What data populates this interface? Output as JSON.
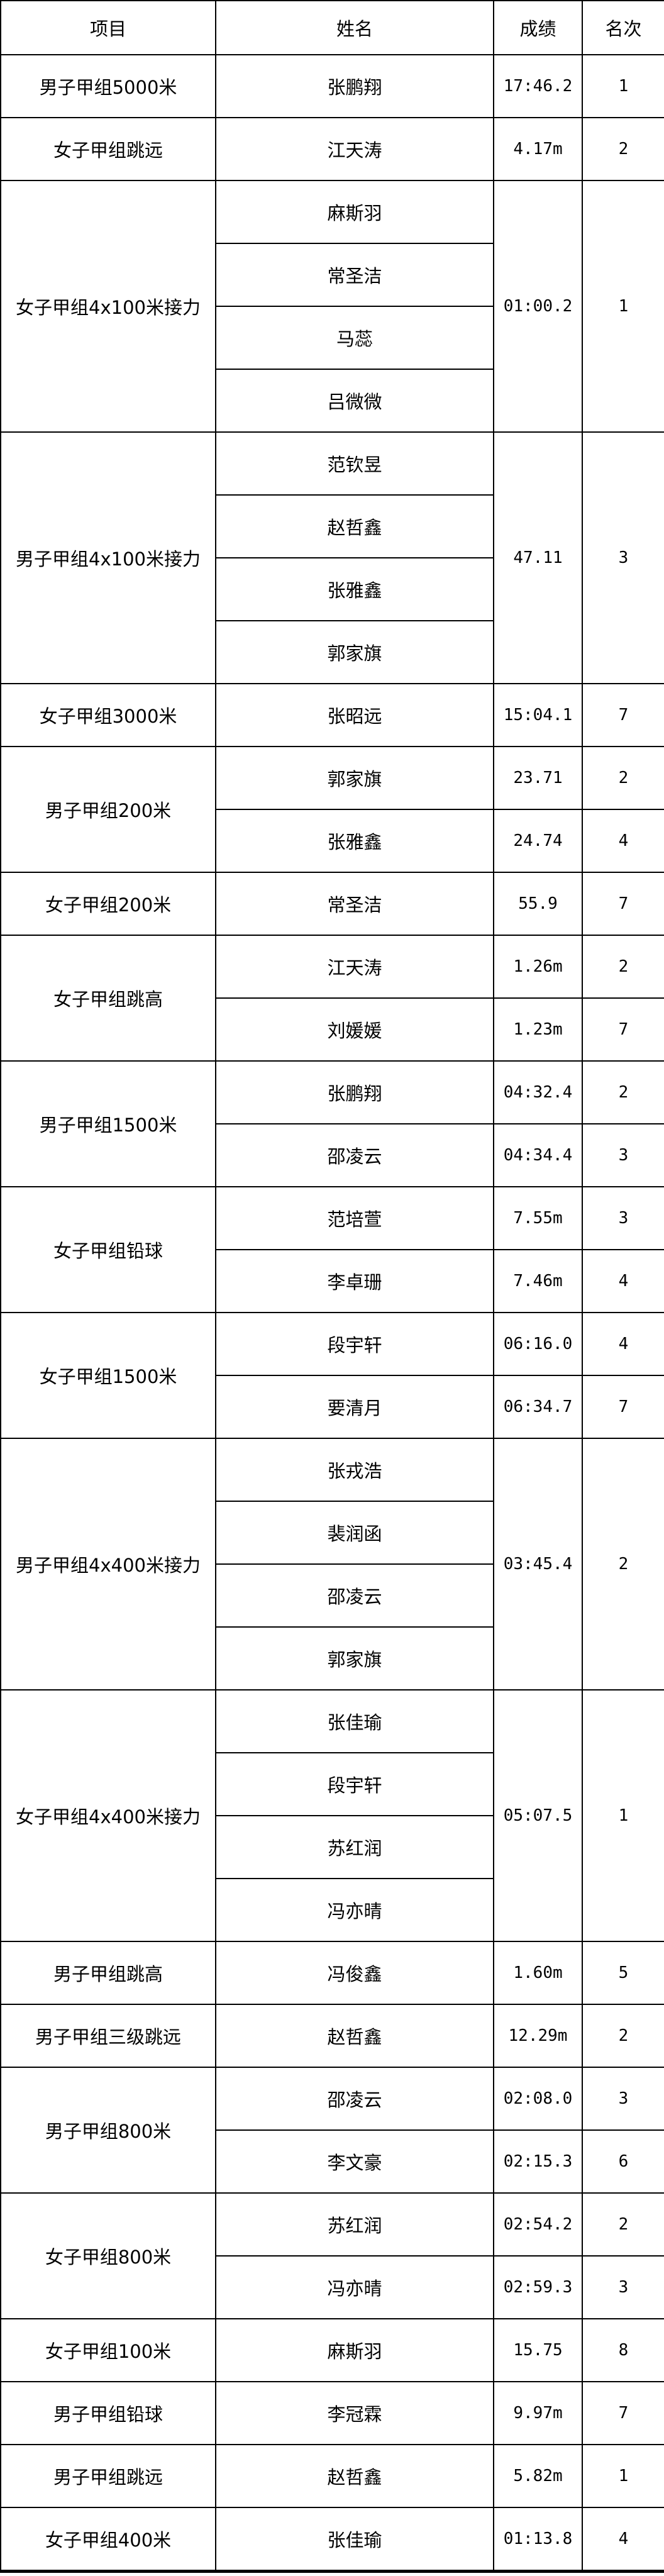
{
  "table": {
    "header": [
      "项目",
      "姓名",
      "成绩",
      "名次"
    ],
    "groups": [
      {
        "event": "男子甲组5000米",
        "names": [
          "张鹏翔"
        ],
        "results": [
          {
            "score": "17:46.2",
            "rank": 1
          }
        ]
      },
      {
        "event": "女子甲组跳远",
        "names": [
          "江天涛"
        ],
        "results": [
          {
            "score": "4.17m",
            "rank": 2
          }
        ]
      },
      {
        "event": "女子甲组4x100米接力",
        "names": [
          "麻斯羽",
          "常圣洁",
          "马蕊",
          "吕微微"
        ],
        "results": [
          {
            "score": "01:00.2",
            "rank": 1
          }
        ]
      },
      {
        "event": "男子甲组4x100米接力",
        "names": [
          "范钦昱",
          "赵哲鑫",
          "张雅鑫",
          "郭家旗"
        ],
        "results": [
          {
            "score": "47.11",
            "rank": 3
          }
        ]
      },
      {
        "event": "女子甲组3000米",
        "names": [
          "张昭远"
        ],
        "results": [
          {
            "score": "15:04.1",
            "rank": 7
          }
        ]
      },
      {
        "event": "男子甲组200米",
        "names": [
          "郭家旗",
          "张雅鑫"
        ],
        "results": [
          {
            "score": "23.71",
            "rank": 2
          },
          {
            "score": "24.74",
            "rank": 4
          }
        ]
      },
      {
        "event": "女子甲组200米",
        "names": [
          "常圣洁"
        ],
        "results": [
          {
            "score": "55.9",
            "rank": 7
          }
        ]
      },
      {
        "event": "女子甲组跳高",
        "names": [
          "江天涛",
          "刘媛媛"
        ],
        "results": [
          {
            "score": "1.26m",
            "rank": 2
          },
          {
            "score": "1.23m",
            "rank": 7
          }
        ]
      },
      {
        "event": "男子甲组1500米",
        "names": [
          "张鹏翔",
          "邵凌云"
        ],
        "results": [
          {
            "score": "04:32.4",
            "rank": 2
          },
          {
            "score": "04:34.4",
            "rank": 3
          }
        ]
      },
      {
        "event": "女子甲组铅球",
        "names": [
          "范培萱",
          "李卓珊"
        ],
        "results": [
          {
            "score": "7.55m",
            "rank": 3
          },
          {
            "score": "7.46m",
            "rank": 4
          }
        ]
      },
      {
        "event": "女子甲组1500米",
        "names": [
          "段宇轩",
          "要清月"
        ],
        "results": [
          {
            "score": "06:16.0",
            "rank": 4
          },
          {
            "score": "06:34.7",
            "rank": 7
          }
        ]
      },
      {
        "event": "男子甲组4x400米接力",
        "names": [
          "张戎浩",
          "裴润函",
          "邵凌云",
          "郭家旗"
        ],
        "results": [
          {
            "score": "03:45.4",
            "rank": 2
          }
        ]
      },
      {
        "event": "女子甲组4x400米接力",
        "names": [
          "张佳瑜",
          "段宇轩",
          "苏红润",
          "冯亦晴"
        ],
        "results": [
          {
            "score": "05:07.5",
            "rank": 1
          }
        ]
      },
      {
        "event": "男子甲组跳高",
        "names": [
          "冯俊鑫"
        ],
        "results": [
          {
            "score": "1.60m",
            "rank": 5
          }
        ]
      },
      {
        "event": "男子甲组三级跳远",
        "names": [
          "赵哲鑫"
        ],
        "results": [
          {
            "score": "12.29m",
            "rank": 2
          }
        ]
      },
      {
        "event": "男子甲组800米",
        "names": [
          "邵凌云",
          "李文豪"
        ],
        "results": [
          {
            "score": "02:08.0",
            "rank": 3
          },
          {
            "score": "02:15.3",
            "rank": 6
          }
        ]
      },
      {
        "event": "女子甲组800米",
        "names": [
          "苏红润",
          "冯亦晴"
        ],
        "results": [
          {
            "score": "02:54.2",
            "rank": 2
          },
          {
            "score": "02:59.3",
            "rank": 3
          }
        ]
      },
      {
        "event": "女子甲组100米",
        "names": [
          "麻斯羽"
        ],
        "results": [
          {
            "score": "15.75",
            "rank": 8
          }
        ]
      },
      {
        "event": "男子甲组铅球",
        "names": [
          "李冠霖"
        ],
        "results": [
          {
            "score": "9.97m",
            "rank": 7
          }
        ]
      },
      {
        "event": "男子甲组跳远",
        "names": [
          "赵哲鑫"
        ],
        "results": [
          {
            "score": "5.82m",
            "rank": 1
          }
        ]
      },
      {
        "event": "女子甲组400米",
        "names": [
          "张佳瑜"
        ],
        "results": [
          {
            "score": "01:13.8",
            "rank": 4
          }
        ]
      }
    ]
  }
}
